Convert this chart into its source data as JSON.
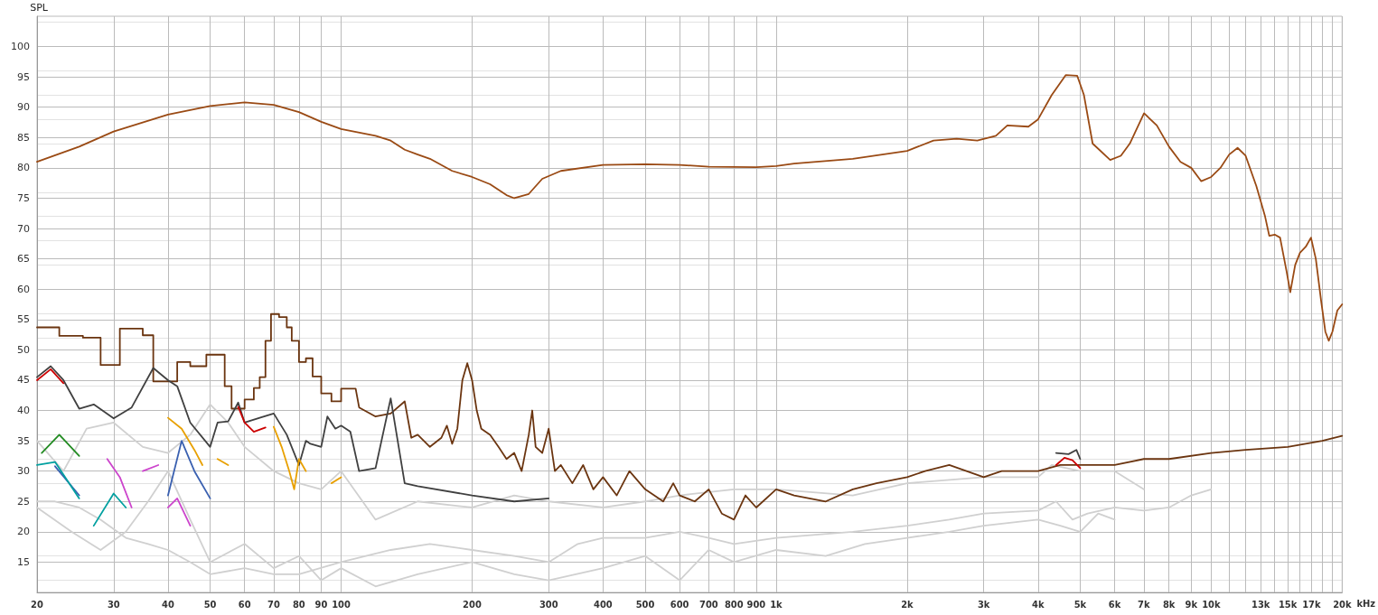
{
  "chart_data": {
    "type": "line",
    "ylabel": "SPL",
    "xlim": [
      20,
      20000
    ],
    "ylim": [
      10,
      105
    ],
    "log": "x",
    "grid": true,
    "marker": "none",
    "line_style": "solid",
    "xticks": [
      20,
      30,
      40,
      50,
      60,
      70,
      80,
      90,
      100,
      200,
      300,
      400,
      500,
      600,
      700,
      800,
      900,
      {
        "value": 1000,
        "label": "1k"
      },
      {
        "value": 2000,
        "label": "2k"
      },
      {
        "value": 3000,
        "label": "3k"
      },
      {
        "value": 4000,
        "label": "4k"
      },
      {
        "value": 5000,
        "label": "5k"
      },
      {
        "value": 6000,
        "label": "6k"
      },
      {
        "value": 7000,
        "label": "7k"
      },
      {
        "value": 8000,
        "label": "8k"
      },
      {
        "value": 9000,
        "label": "9k"
      },
      {
        "value": 10000,
        "label": "10k"
      },
      {
        "value": 11000,
        "label": null
      },
      {
        "value": 12000,
        "label": null
      },
      {
        "value": 13000,
        "label": "13k"
      },
      {
        "value": 14000,
        "label": null
      },
      {
        "value": 15000,
        "label": "15k"
      },
      {
        "value": 16000,
        "label": null
      },
      {
        "value": 17000,
        "label": "17k"
      },
      {
        "value": 18000,
        "label": null
      },
      {
        "value": 19000,
        "label": null
      },
      {
        "value": 20000,
        "label": "20k"
      }
    ],
    "xlabel": "kHz",
    "yticks": [
      15,
      20,
      25,
      30,
      35,
      40,
      45,
      50,
      55,
      60,
      65,
      70,
      75,
      80,
      85,
      90,
      95,
      100
    ],
    "series": [
      {
        "color": "#d0d0d0",
        "x": [
          20,
          22,
          25,
          28,
          32,
          36,
          40,
          45,
          50,
          60,
          70,
          80,
          100,
          130,
          160,
          200,
          250,
          300,
          350,
          400,
          500,
          600,
          700,
          800,
          1000,
          1500,
          2000,
          2500,
          3000,
          4000,
          4400,
          4800,
          5200,
          6000,
          7000,
          8000,
          9000,
          10000
        ],
        "values": [
          25,
          25,
          24,
          22,
          19,
          18,
          17,
          15,
          13,
          14,
          13,
          13,
          15,
          17,
          18,
          17,
          16,
          15,
          18,
          19,
          19,
          20,
          19,
          18,
          19,
          20,
          21,
          22,
          23,
          23.5,
          25,
          22,
          23,
          24,
          23.5,
          24,
          26,
          27
        ]
      },
      {
        "color": "#d0d0d0",
        "x": [
          20,
          23,
          26,
          30,
          35,
          40,
          45,
          50,
          55,
          60,
          70,
          80,
          90,
          100,
          120,
          150,
          200,
          250,
          300,
          400,
          500,
          600,
          800,
          1000,
          1500,
          2000,
          3000,
          4000,
          4300,
          5000,
          6000,
          7000
        ],
        "values": [
          35,
          30,
          37,
          38,
          34,
          33,
          36,
          41,
          38,
          34,
          30,
          28,
          27,
          30,
          22,
          25,
          24,
          26,
          25,
          24,
          25,
          26,
          27,
          27,
          26,
          28,
          29,
          29,
          31,
          30,
          30,
          27
        ]
      },
      {
        "color": "#d0d0d0",
        "x": [
          20,
          24,
          28,
          32,
          36,
          40,
          45,
          50,
          60,
          70,
          80,
          90,
          100,
          120,
          150,
          200,
          250,
          300,
          400,
          500,
          600,
          700,
          800,
          1000,
          1300,
          1600,
          2000,
          2500,
          3000,
          4000,
          4500,
          5000,
          5500,
          6000
        ],
        "values": [
          24,
          20,
          17,
          20,
          25,
          30,
          22,
          15,
          18,
          14,
          16,
          12,
          14,
          11,
          13,
          15,
          13,
          12,
          14,
          16,
          12,
          17,
          15,
          17,
          16,
          18,
          19,
          20,
          21,
          22,
          21,
          20,
          23,
          22
        ]
      },
      {
        "color": "#9a4a14",
        "x": [
          20,
          25,
          30,
          40,
          50,
          60,
          70,
          80,
          90,
          100,
          120,
          130,
          140,
          150,
          160,
          180,
          200,
          220,
          240,
          250,
          270,
          290,
          320,
          400,
          500,
          600,
          700,
          900,
          1000,
          1100,
          1500,
          2000,
          2300,
          2600,
          2900,
          3200,
          3400,
          3800,
          4000,
          4300,
          4630,
          4920,
          5100,
          5340,
          5860,
          6200,
          6500,
          7010,
          7500,
          8000,
          8500,
          9000,
          9490,
          10000,
          10500,
          11000,
          11500,
          12000,
          12700,
          13300,
          13600,
          14000,
          14400,
          14900,
          15200,
          15600,
          16000,
          16500,
          16960,
          17400,
          17900,
          18300,
          18630,
          19000,
          19500,
          20000
        ],
        "values": [
          81,
          83.5,
          86,
          88.8,
          90.2,
          90.8,
          90.4,
          89.2,
          87.6,
          86.4,
          85.3,
          84.5,
          83,
          82.2,
          81.5,
          79.5,
          78.5,
          77.3,
          75.5,
          75,
          75.7,
          78.2,
          79.5,
          80.5,
          80.6,
          80.5,
          80.2,
          80.1,
          80.3,
          80.7,
          81.5,
          82.8,
          84.5,
          84.8,
          84.5,
          85.3,
          87,
          86.8,
          88,
          92,
          95.3,
          95.2,
          92,
          84,
          81.3,
          82,
          84,
          89,
          87,
          83.5,
          81,
          80,
          77.8,
          78.5,
          80,
          82.2,
          83.3,
          82,
          77,
          72,
          68.8,
          69,
          68.5,
          63,
          59.5,
          64,
          66,
          67,
          68.5,
          65,
          58,
          53,
          51.5,
          53,
          56.5,
          57.5
        ]
      },
      {
        "color": "#6b3510",
        "x": [
          20,
          22.5,
          22.5,
          25.5,
          25.5,
          28,
          28,
          31,
          31,
          35,
          35,
          37,
          37,
          42,
          42,
          45,
          45,
          49,
          49,
          54,
          54,
          56,
          56,
          60,
          60,
          63,
          63,
          65,
          65,
          67,
          67,
          69,
          69,
          72,
          72,
          75,
          75,
          77,
          77,
          80,
          80,
          83,
          83,
          86,
          86,
          90,
          90,
          95,
          95,
          100,
          100,
          108,
          110,
          120,
          130,
          140,
          145,
          150,
          160,
          170,
          175,
          180,
          185,
          190,
          195,
          200,
          205,
          210,
          220,
          230,
          240,
          250,
          260,
          270,
          275,
          280,
          290,
          300,
          310,
          320,
          340,
          360,
          380,
          400,
          430,
          460,
          500,
          550,
          580,
          600,
          650,
          700,
          750,
          800,
          850,
          900,
          1000,
          1100,
          1300,
          1500,
          1700,
          2000,
          2200,
          2500,
          3000,
          3300,
          4000,
          4500,
          5000,
          6000,
          7000,
          8000,
          10000,
          12000,
          15000,
          18000,
          20000
        ],
        "values": [
          53.7,
          53.7,
          52.3,
          52.3,
          52,
          52,
          47.5,
          47.5,
          53.5,
          53.5,
          52.4,
          52.4,
          44.8,
          44.8,
          48,
          48,
          47.3,
          47.3,
          49.2,
          49.2,
          44,
          44,
          40.3,
          40.3,
          41.8,
          41.8,
          43.7,
          43.7,
          45.5,
          45.5,
          51.5,
          51.5,
          55.9,
          55.9,
          55.4,
          55.4,
          53.7,
          53.7,
          51.5,
          51.5,
          48,
          48,
          48.6,
          48.6,
          45.6,
          45.6,
          42.8,
          42.8,
          41.5,
          41.5,
          43.6,
          43.6,
          40.5,
          39,
          39.5,
          41.5,
          35.5,
          36,
          34,
          35.5,
          37.5,
          34.5,
          37,
          45,
          47.8,
          45,
          40,
          37,
          36,
          34,
          32,
          33,
          30,
          36,
          40,
          34,
          33,
          37,
          30,
          31,
          28,
          31,
          27,
          29,
          26,
          30,
          27,
          25,
          28,
          26,
          25,
          27,
          23,
          22,
          26,
          24,
          27,
          26,
          25,
          27,
          28,
          29,
          30,
          31,
          29,
          30,
          30,
          31,
          31,
          31,
          32,
          32,
          33,
          33.5,
          34,
          35,
          35.8
        ]
      },
      {
        "color": "#404040",
        "x": [
          20,
          21.5,
          23,
          25,
          27,
          30,
          33,
          37,
          40,
          42,
          45,
          50,
          52,
          55,
          58,
          60,
          65,
          70,
          75,
          80,
          83,
          85,
          90,
          93,
          97,
          100,
          105,
          110,
          120,
          130,
          140,
          150,
          200,
          250,
          300,
          350,
          4300,
          4400,
          4700,
          4900,
          5000
        ],
        "values": [
          45.5,
          47.3,
          45,
          40.3,
          41,
          38.7,
          40.5,
          47,
          45,
          44,
          38,
          34,
          38,
          38.2,
          41.3,
          38,
          38.8,
          39.5,
          36,
          31,
          35,
          34.5,
          34,
          39,
          37,
          37.5,
          36.5,
          30,
          30.5,
          42,
          28,
          27.5,
          26,
          25,
          25.5,
          null,
          null,
          33,
          32.8,
          33.5,
          32
        ]
      },
      {
        "color": "#cc0000",
        "x": [
          20,
          21.5,
          23,
          25,
          58,
          60,
          63,
          67,
          70,
          4300,
          4400,
          4600,
          4800,
          5000
        ],
        "values": [
          45,
          46.8,
          44.5,
          null,
          40.6,
          38,
          36.5,
          37.2,
          null,
          null,
          31,
          32.2,
          31.8,
          30.5
        ]
      },
      {
        "color": "#e8a000",
        "x": [
          40,
          43,
          46,
          48,
          50,
          52,
          55,
          57,
          70,
          73,
          76,
          78,
          80,
          83,
          88,
          95,
          100
        ],
        "values": [
          38.8,
          37,
          33.5,
          31,
          null,
          32,
          31,
          null,
          37.3,
          34,
          30,
          27,
          32,
          30,
          null,
          28,
          29
        ]
      },
      {
        "color": "#3a60b0",
        "x": [
          22,
          25,
          30,
          40,
          43,
          46,
          50
        ],
        "values": [
          30.8,
          26,
          null,
          26,
          35,
          30,
          25.5
        ]
      },
      {
        "color": "#228b22",
        "x": [
          20.5,
          22.5,
          25
        ],
        "values": [
          33,
          36,
          32.5
        ]
      },
      {
        "color": "#00a0a0",
        "x": [
          20,
          22,
          25,
          26,
          27,
          30,
          32
        ],
        "values": [
          31,
          31.5,
          25.5,
          null,
          21,
          26.3,
          24
        ]
      },
      {
        "color": "#cc44cc",
        "x": [
          29,
          31,
          33,
          34,
          35,
          38,
          39,
          40,
          42,
          45
        ],
        "values": [
          32,
          29,
          24,
          null,
          30,
          31,
          null,
          24,
          25.5,
          21
        ]
      }
    ]
  }
}
